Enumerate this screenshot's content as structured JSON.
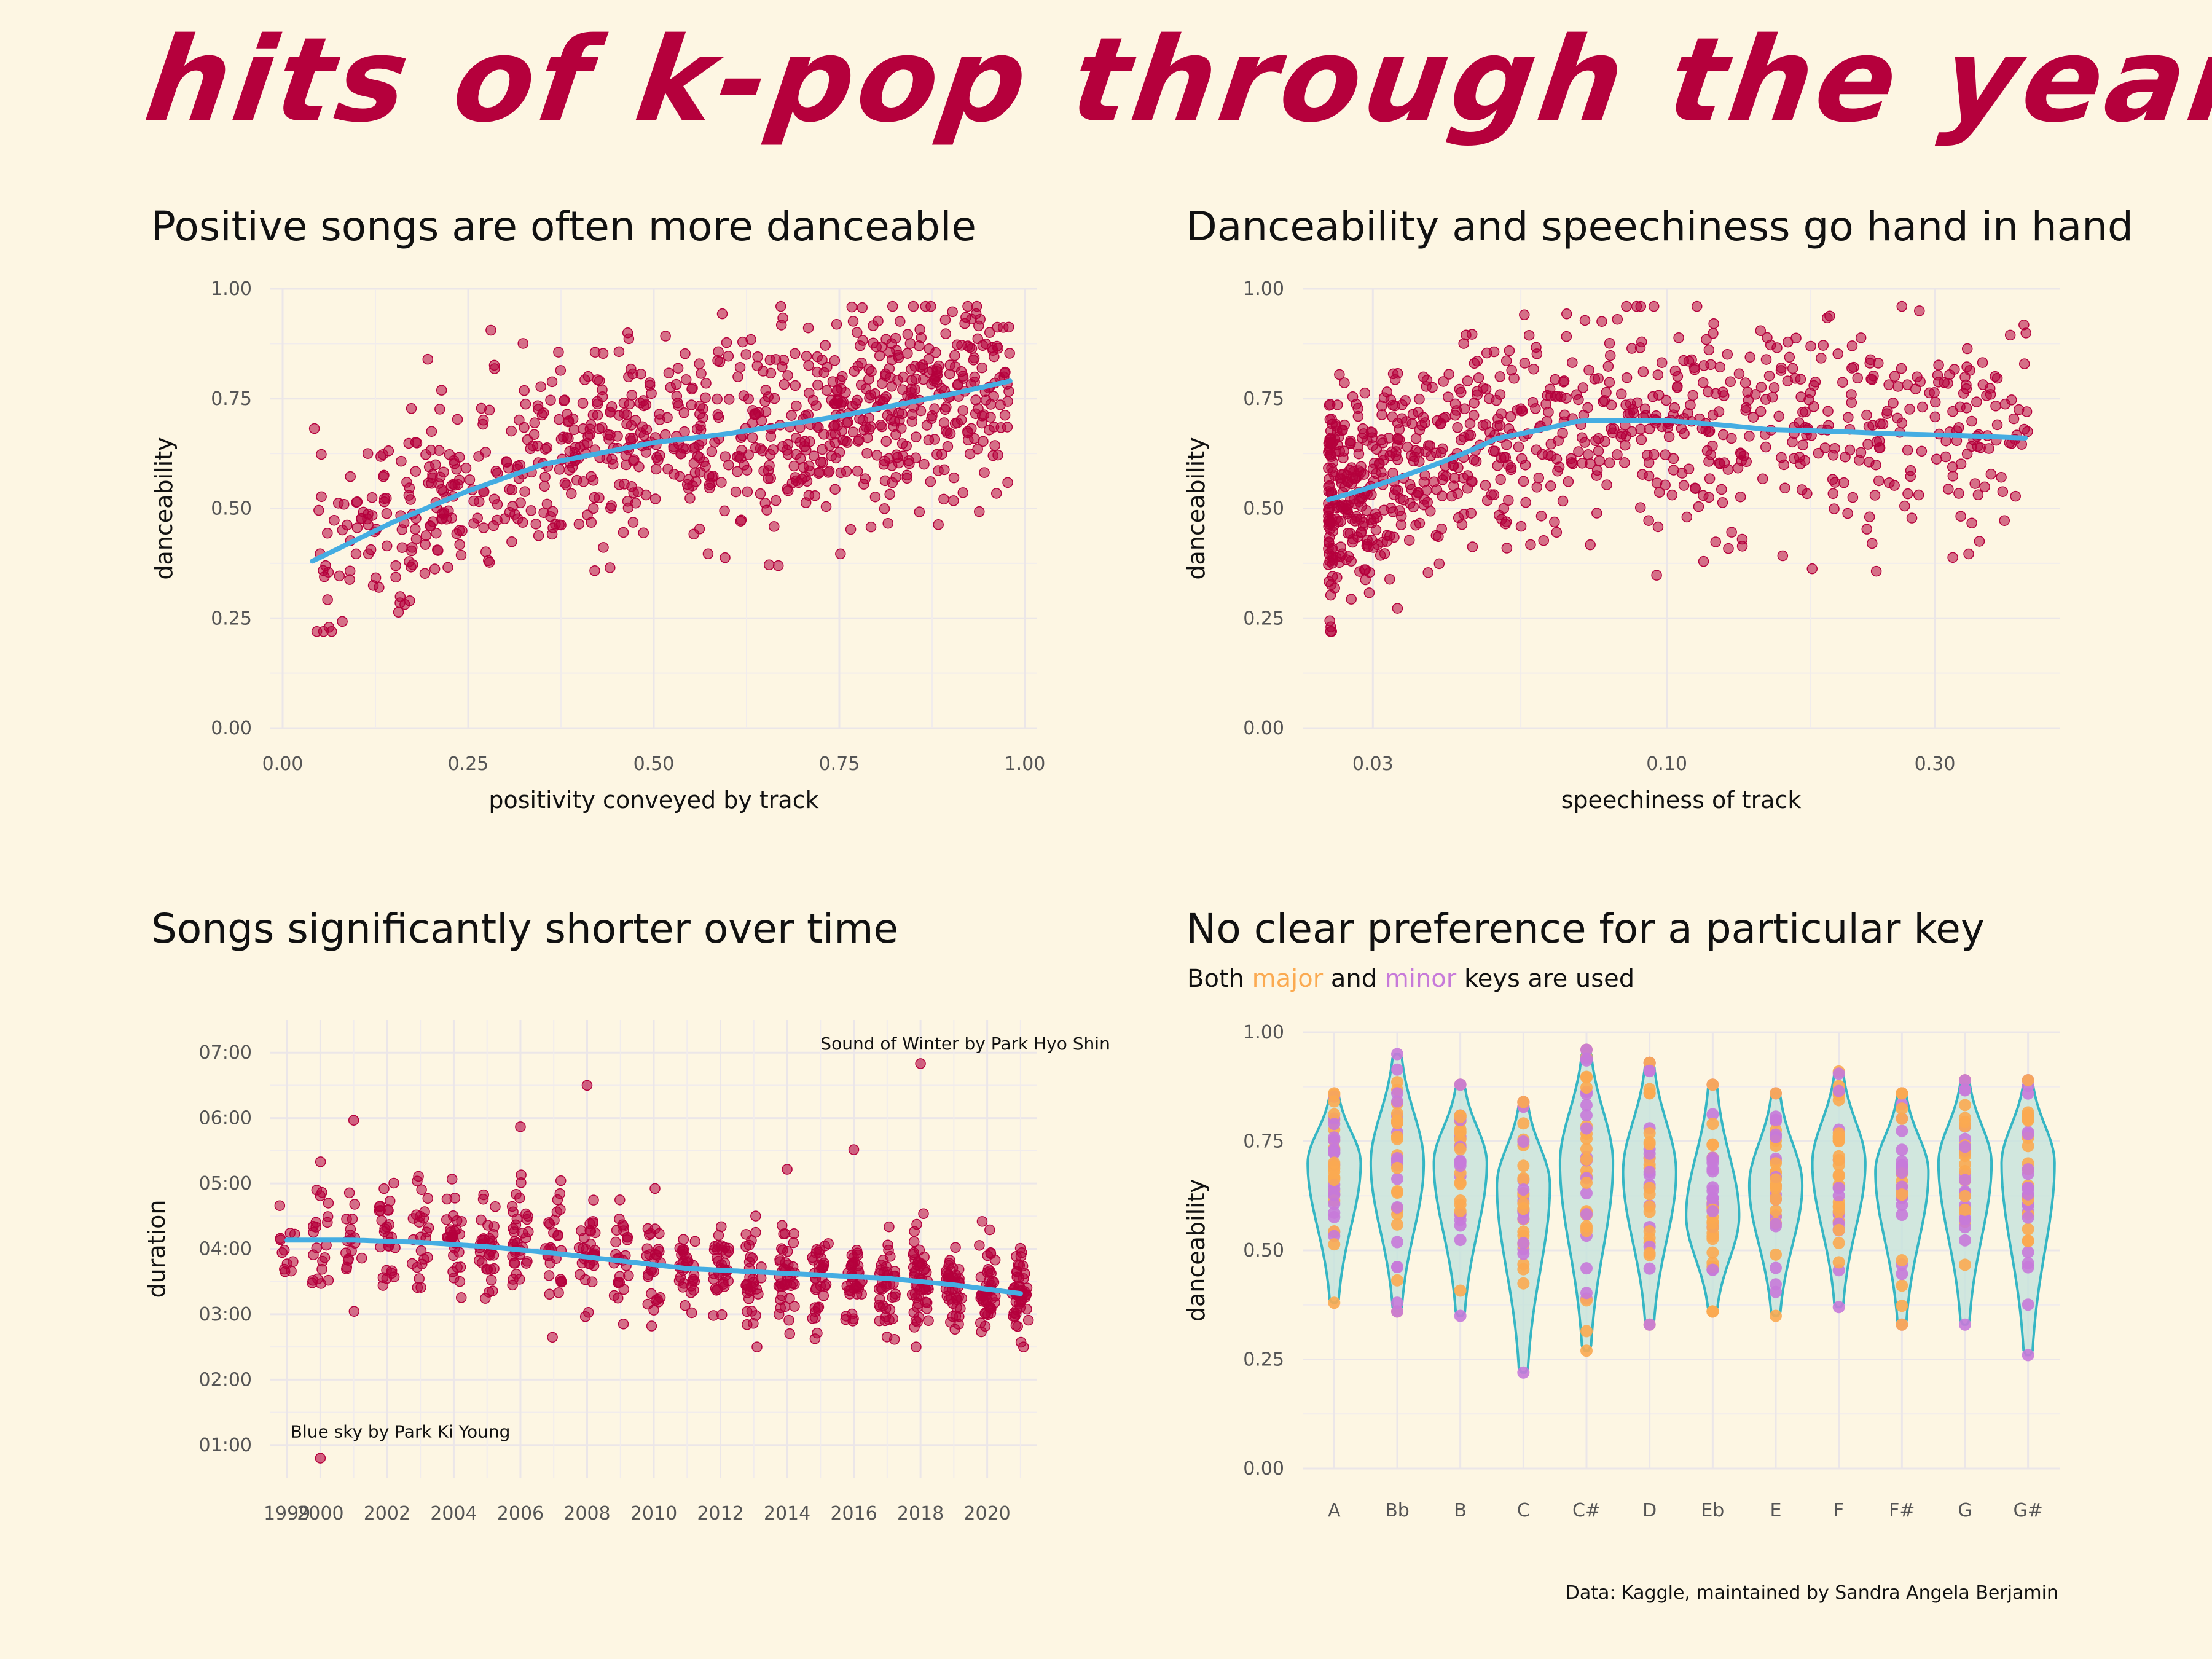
{
  "title": "hits of k-pop through the years",
  "caption": "Data: Kaggle, maintained by Sandra Angela Berjamin",
  "colors": {
    "title": "#b5003c",
    "point": "#b5003c",
    "smooth": "#45ade2",
    "violin_fill": "#c6e3dc",
    "violin_stroke": "#35b6c4",
    "major": "#fbaa51",
    "minor": "#c77ad9",
    "background": "#fdf6e3"
  },
  "panels": {
    "p1": {
      "title": "Positive songs are often more danceable"
    },
    "p2": {
      "title": "Danceability and speechiness go hand in hand"
    },
    "p3": {
      "title": "Songs significantly shorter over time"
    },
    "p4": {
      "title": "No clear preference for a particular key",
      "subtitle": {
        "prefix": "Both ",
        "major": "major",
        "mid": " and ",
        "minor": "minor",
        "suffix": " keys are used"
      }
    }
  },
  "chart_data": [
    {
      "type": "scatter",
      "title": "Positive songs are often more danceable",
      "xlabel": "positivity conveyed by track",
      "ylabel": "danceability",
      "xlim": [
        0,
        1
      ],
      "ylim": [
        0,
        1
      ],
      "xticks": [
        "0.00",
        "0.25",
        "0.50",
        "0.75",
        "1.00"
      ],
      "yticks": [
        "0.00",
        "0.25",
        "0.50",
        "0.75",
        "1.00"
      ],
      "grid": true,
      "point_cloud": {
        "n": 900,
        "x_range": [
          0.04,
          0.98
        ],
        "y_range": [
          0.22,
          0.96
        ],
        "spread": 0.11
      },
      "smooth": {
        "x": [
          0.04,
          0.15,
          0.25,
          0.35,
          0.5,
          0.6,
          0.75,
          0.9,
          0.98
        ],
        "y": [
          0.38,
          0.47,
          0.54,
          0.6,
          0.65,
          0.67,
          0.71,
          0.76,
          0.79
        ]
      }
    },
    {
      "type": "scatter",
      "title": "Danceability and speechiness go hand in hand",
      "xlabel": "speechiness of track",
      "ylabel": "danceability",
      "xscale": "log",
      "xlim": [
        0.0225,
        0.5
      ],
      "ylim": [
        0,
        1
      ],
      "xticks": [
        {
          "v": 0.03,
          "label": "0.03"
        },
        {
          "v": 0.1,
          "label": "0.10"
        },
        {
          "v": 0.3,
          "label": "0.30"
        }
      ],
      "yticks": [
        "0.00",
        "0.25",
        "0.50",
        "0.75",
        "1.00"
      ],
      "grid": true,
      "point_cloud": {
        "n": 900,
        "x_range": [
          0.025,
          0.44
        ],
        "y_range": [
          0.22,
          0.96
        ],
        "spread": 0.12
      },
      "smooth": {
        "x": [
          0.025,
          0.035,
          0.05,
          0.07,
          0.1,
          0.15,
          0.25,
          0.44
        ],
        "y": [
          0.52,
          0.58,
          0.66,
          0.7,
          0.7,
          0.68,
          0.67,
          0.66
        ]
      }
    },
    {
      "type": "scatter",
      "title": "Songs significantly shorter over time",
      "xlabel": "",
      "ylabel": "duration",
      "xlim": [
        1998.5,
        2021.5
      ],
      "ylim_seconds": [
        30,
        450
      ],
      "xticks": [
        "1999",
        "2000",
        "2002",
        "2004",
        "2006",
        "2008",
        "2010",
        "2012",
        "2014",
        "2016",
        "2018",
        "2020"
      ],
      "yticks": [
        {
          "v": 60,
          "label": "01:00"
        },
        {
          "v": 120,
          "label": "02:00"
        },
        {
          "v": 180,
          "label": "03:00"
        },
        {
          "v": 240,
          "label": "04:00"
        },
        {
          "v": 300,
          "label": "05:00"
        },
        {
          "v": 360,
          "label": "06:00"
        },
        {
          "v": 420,
          "label": "07:00"
        }
      ],
      "grid": true,
      "years": [
        1999,
        2000,
        2001,
        2002,
        2003,
        2004,
        2005,
        2006,
        2007,
        2008,
        2009,
        2010,
        2011,
        2012,
        2013,
        2014,
        2015,
        2016,
        2017,
        2018,
        2019,
        2020,
        2021
      ],
      "mean_seconds": [
        250,
        245,
        245,
        250,
        248,
        245,
        243,
        240,
        237,
        230,
        222,
        220,
        222,
        220,
        215,
        215,
        215,
        213,
        210,
        210,
        207,
        205,
        200
      ],
      "spread_seconds": [
        26,
        30,
        30,
        30,
        30,
        28,
        28,
        28,
        26,
        26,
        24,
        24,
        24,
        22,
        22,
        22,
        22,
        20,
        20,
        22,
        22,
        22,
        22
      ],
      "n_per_year": [
        12,
        22,
        18,
        28,
        24,
        30,
        32,
        34,
        28,
        30,
        26,
        28,
        30,
        34,
        32,
        40,
        34,
        36,
        40,
        50,
        44,
        46,
        48
      ],
      "outliers": [
        {
          "x": 2000,
          "y": 48
        },
        {
          "x": 2018,
          "y": 410
        },
        {
          "x": 2008,
          "y": 390
        },
        {
          "x": 2001,
          "y": 358
        },
        {
          "x": 2006,
          "y": 352
        },
        {
          "x": 2016,
          "y": 331
        },
        {
          "x": 2014,
          "y": 313
        }
      ],
      "smooth": {
        "x": [
          1999,
          2001,
          2003,
          2005,
          2007,
          2009,
          2011,
          2013,
          2015,
          2017,
          2019,
          2021
        ],
        "y": [
          248,
          248,
          246,
          242,
          236,
          229,
          222,
          219,
          216,
          213,
          207,
          199
        ]
      },
      "annotations": [
        {
          "text": "Sound of Winter by Park Hyo Shin",
          "x": 2015,
          "y": 423,
          "anchor": "start"
        },
        {
          "text": "Blue sky by Park Ki Young",
          "x": 2002.4,
          "y": 67,
          "anchor": "middle"
        }
      ]
    },
    {
      "type": "violin",
      "title": "No clear preference for a particular key",
      "ylabel": "danceability",
      "ylim": [
        0,
        1
      ],
      "yticks": [
        "0.00",
        "0.25",
        "0.50",
        "0.75",
        "1.00"
      ],
      "grid": true,
      "categories": [
        "A",
        "Bb",
        "B",
        "C",
        "C#",
        "D",
        "Eb",
        "E",
        "F",
        "F#",
        "G",
        "G#"
      ],
      "ranges": [
        [
          0.38,
          0.86
        ],
        [
          0.36,
          0.95
        ],
        [
          0.35,
          0.88
        ],
        [
          0.22,
          0.84
        ],
        [
          0.27,
          0.96
        ],
        [
          0.33,
          0.93
        ],
        [
          0.36,
          0.88
        ],
        [
          0.35,
          0.86
        ],
        [
          0.37,
          0.91
        ],
        [
          0.33,
          0.86
        ],
        [
          0.33,
          0.89
        ],
        [
          0.26,
          0.89
        ]
      ],
      "modes": [
        0.7,
        0.7,
        0.7,
        0.65,
        0.7,
        0.68,
        0.58,
        0.65,
        0.7,
        0.68,
        0.7,
        0.7
      ],
      "series": [
        {
          "name": "major"
        },
        {
          "name": "minor"
        }
      ]
    }
  ]
}
